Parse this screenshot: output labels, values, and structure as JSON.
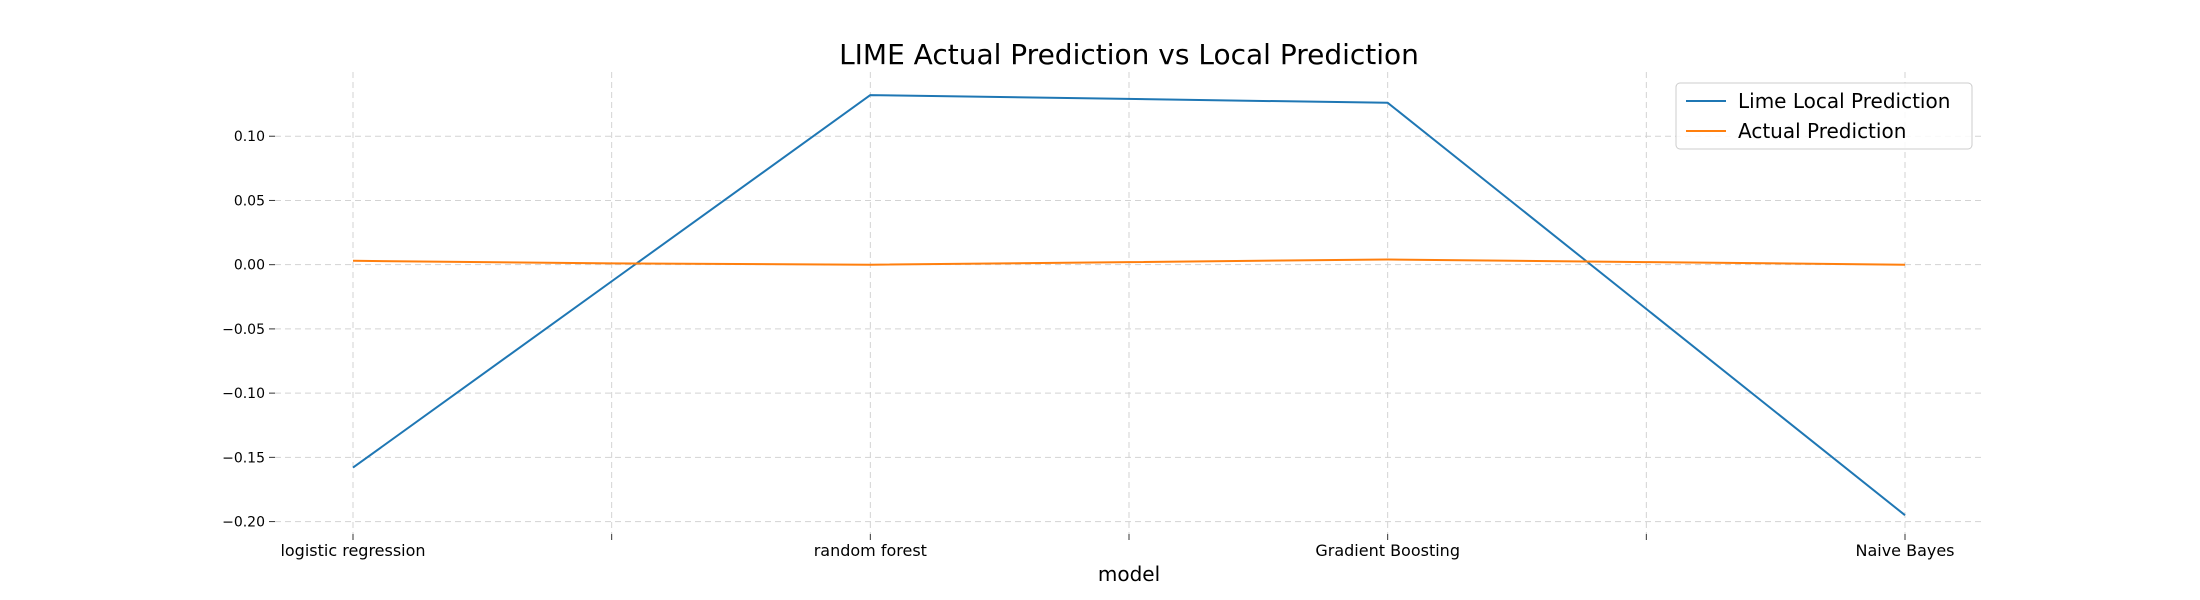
{
  "chart_data": {
    "type": "line",
    "title": "LIME Actual Prediction vs Local Prediction",
    "xlabel": "model",
    "ylabel": "",
    "categories": [
      "logistic regression",
      "",
      "random forest",
      "",
      "Gradient Boosting",
      "",
      "Naive Bayes"
    ],
    "x": [
      0,
      1,
      2,
      3,
      4,
      5,
      6
    ],
    "xticks": [
      0,
      1,
      2,
      3,
      4,
      5,
      6
    ],
    "ylim": [
      -0.205,
      0.15
    ],
    "yticks": [
      -0.2,
      -0.15,
      -0.1,
      -0.05,
      0.0,
      0.05,
      0.1
    ],
    "ytick_labels": [
      "−0.20",
      "−0.15",
      "−0.10",
      "−0.05",
      "0.00",
      "0.05",
      "0.10"
    ],
    "grid": true,
    "legend_position": "top-right",
    "series": [
      {
        "name": "Lime Local Prediction",
        "color": "#1f77b4",
        "points": [
          [
            0,
            -0.158
          ],
          [
            2,
            0.132
          ],
          [
            4,
            0.126
          ],
          [
            6,
            -0.195
          ]
        ]
      },
      {
        "name": "Actual Prediction",
        "color": "#ff7f0e",
        "points": [
          [
            0,
            0.003
          ],
          [
            1,
            0.001
          ],
          [
            2,
            0.0
          ],
          [
            3,
            0.002
          ],
          [
            4,
            0.004
          ],
          [
            5,
            0.002
          ],
          [
            6,
            0.0
          ]
        ]
      }
    ]
  }
}
